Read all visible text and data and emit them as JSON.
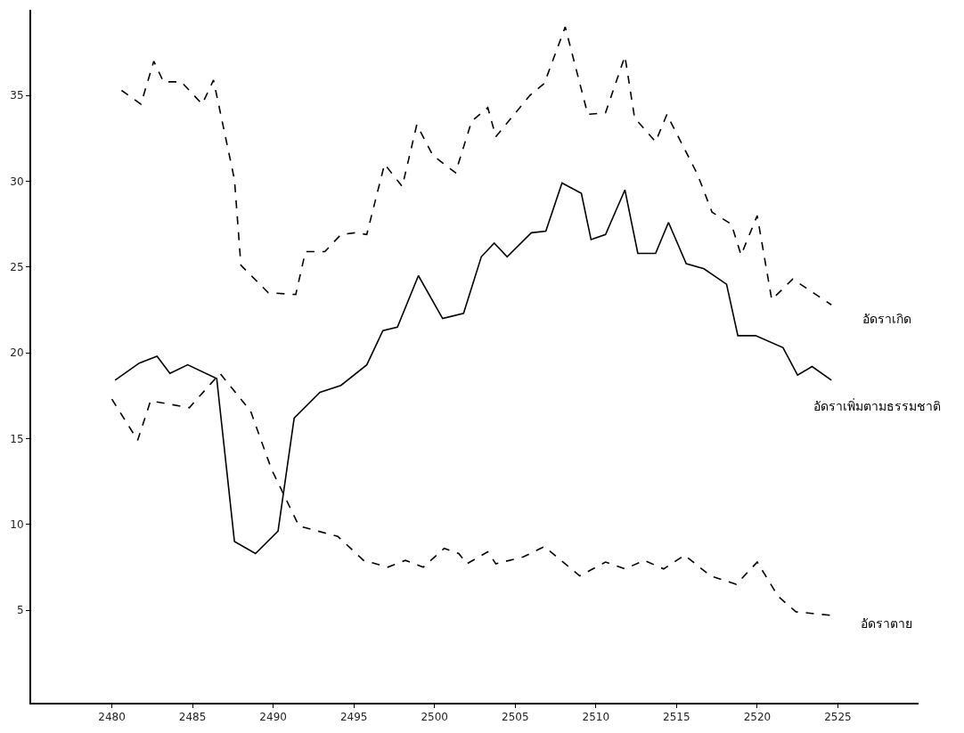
{
  "chart_data": {
    "type": "line",
    "legend": false,
    "marker": "none",
    "xlim": [
      2475,
      2530
    ],
    "xticks": [
      2480,
      2485,
      2490,
      2495,
      2500,
      2505,
      2510,
      2515,
      2520,
      2525
    ],
    "ylim": [
      -0.4,
      40
    ],
    "yticks": [
      5,
      10,
      15,
      20,
      25,
      30,
      35
    ],
    "series": [
      {
        "name": "อัดราเกิด",
        "color": "#000000",
        "line_style": "dashed",
        "x": [
          2480.6,
          2481.8,
          2482.6,
          2483.2,
          2484.3,
          2485.6,
          2486.3,
          2487.6,
          2488.0,
          2489.7,
          2491.4,
          2492.0,
          2493.2,
          2494.2,
          2495.1,
          2495.8,
          2496.9,
          2498.0,
          2498.9,
          2499.9,
          2501.3,
          2502.3,
          2503.3,
          2503.8,
          2505.9,
          2506.8,
          2508.1,
          2509.5,
          2510.6,
          2511.8,
          2512.4,
          2513.7,
          2514.4,
          2516.3,
          2517.2,
          2518.4,
          2519.0,
          2520.0,
          2520.9,
          2522.2,
          2524.6
        ],
        "values": [
          35.3,
          34.5,
          37.0,
          35.8,
          35.8,
          34.5,
          35.9,
          30.1,
          25.1,
          23.5,
          23.4,
          25.9,
          25.9,
          26.9,
          27.0,
          26.9,
          31.0,
          29.7,
          33.3,
          31.5,
          30.5,
          33.5,
          34.3,
          32.6,
          35.0,
          35.7,
          39.0,
          33.9,
          34.0,
          37.3,
          33.7,
          32.3,
          33.9,
          30.4,
          28.2,
          27.5,
          25.7,
          28.0,
          23.1,
          24.3,
          22.8
        ]
      },
      {
        "name": "อัดราเพิ่มตามธรรมชาติ",
        "color": "#000000",
        "line_style": "solid",
        "x": [
          2480.2,
          2481.7,
          2482.8,
          2483.6,
          2484.7,
          2486.5,
          2487.6,
          2488.9,
          2490.3,
          2491.3,
          2492.9,
          2494.2,
          2495.8,
          2496.8,
          2497.7,
          2499.0,
          2500.5,
          2501.8,
          2502.9,
          2503.7,
          2504.5,
          2506.0,
          2506.9,
          2507.9,
          2509.1,
          2509.7,
          2510.6,
          2511.8,
          2512.6,
          2513.7,
          2514.5,
          2515.6,
          2516.7,
          2518.1,
          2518.8,
          2519.9,
          2521.6,
          2522.5,
          2523.4,
          2524.6
        ],
        "values": [
          18.4,
          19.4,
          19.8,
          18.8,
          19.3,
          18.5,
          9.0,
          8.3,
          9.6,
          16.2,
          17.7,
          18.1,
          19.3,
          21.3,
          21.5,
          24.5,
          22.0,
          22.3,
          25.6,
          26.4,
          25.6,
          27.0,
          27.1,
          29.9,
          29.3,
          26.6,
          26.9,
          29.5,
          25.8,
          25.8,
          27.6,
          25.2,
          24.9,
          24.0,
          21.0,
          21.0,
          20.3,
          18.7,
          19.2,
          18.4
        ]
      },
      {
        "name": "อัดราตาย",
        "color": "#000000",
        "line_style": "dashed",
        "x": [
          2480.0,
          2481.6,
          2482.4,
          2484.8,
          2486.7,
          2488.6,
          2489.9,
          2491.6,
          2494.0,
          2495.6,
          2497.1,
          2498.2,
          2499.3,
          2500.6,
          2501.5,
          2502.0,
          2503.3,
          2503.8,
          2505.5,
          2506.8,
          2509.0,
          2510.6,
          2511.8,
          2513.0,
          2514.2,
          2515.5,
          2517.1,
          2518.7,
          2520.0,
          2521.3,
          2522.4,
          2524.5
        ],
        "values": [
          17.3,
          14.9,
          17.2,
          16.8,
          18.8,
          16.6,
          13.2,
          9.9,
          9.3,
          7.9,
          7.5,
          7.9,
          7.5,
          8.6,
          8.3,
          7.7,
          8.4,
          7.7,
          8.1,
          8.7,
          7.0,
          7.8,
          7.4,
          7.9,
          7.4,
          8.2,
          7.0,
          6.5,
          7.8,
          5.8,
          4.9,
          4.7
        ]
      }
    ]
  }
}
